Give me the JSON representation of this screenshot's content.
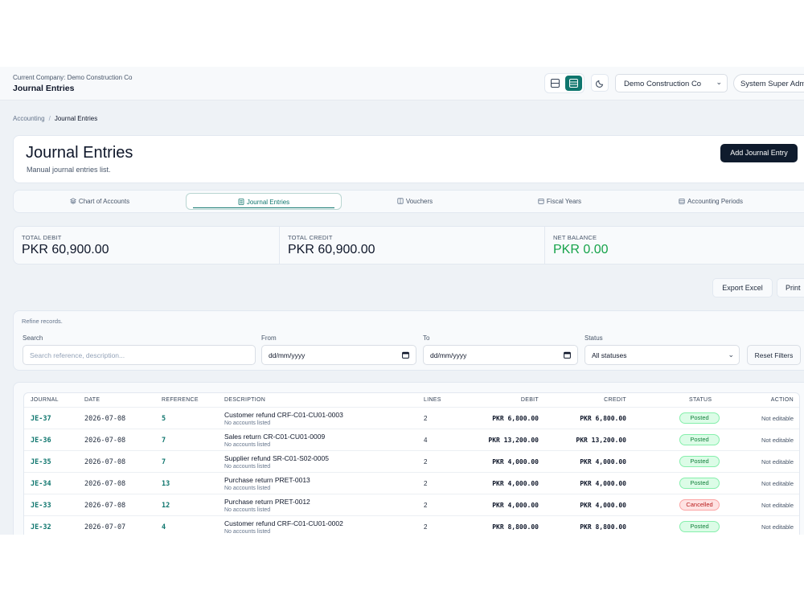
{
  "topbar": {
    "current_company": "Current Company: Demo Construction Co",
    "title": "Journal Entries",
    "company_select": "Demo Construction Co",
    "user": "System Super Admin"
  },
  "breadcrumb": {
    "parent": "Accounting",
    "current": "Journal Entries"
  },
  "header": {
    "title": "Journal Entries",
    "subtitle": "Manual journal entries list.",
    "add_button": "Add Journal Entry"
  },
  "tabs": [
    {
      "label": "Chart of Accounts",
      "icon": "layers-icon"
    },
    {
      "label": "Journal Entries",
      "icon": "document-icon",
      "active": true
    },
    {
      "label": "Vouchers",
      "icon": "voucher-icon"
    },
    {
      "label": "Fiscal Years",
      "icon": "calendar-icon"
    },
    {
      "label": "Accounting Periods",
      "icon": "calendar-grid-icon"
    }
  ],
  "summary": [
    {
      "label": "TOTAL DEBIT",
      "value": "PKR 60,900.00"
    },
    {
      "label": "TOTAL CREDIT",
      "value": "PKR 60,900.00"
    },
    {
      "label": "NET BALANCE",
      "value": "PKR 0.00"
    }
  ],
  "actions": {
    "export": "Export Excel",
    "print": "Print"
  },
  "filters": {
    "refine": "Refine records.",
    "search_label": "Search",
    "search_placeholder": "Search reference, description...",
    "from_label": "From",
    "from_value": "dd/mm/yyyy",
    "to_label": "To",
    "to_value": "dd/mm/yyyy",
    "status_label": "Status",
    "status_value": "All statuses",
    "reset": "Reset Filters"
  },
  "table": {
    "columns": [
      "JOURNAL",
      "DATE",
      "REFERENCE",
      "DESCRIPTION",
      "LINES",
      "DEBIT",
      "CREDIT",
      "STATUS",
      "ACTION"
    ],
    "rows": [
      {
        "journal": "JE-37",
        "date": "2026-07-08",
        "reference": "5",
        "description": "Customer refund CRF-C01-CU01-0003",
        "sub": "No accounts listed",
        "lines": "2",
        "debit": "PKR 6,800.00",
        "credit": "PKR 6,800.00",
        "status": "Posted",
        "action": "Not editable"
      },
      {
        "journal": "JE-36",
        "date": "2026-07-08",
        "reference": "7",
        "description": "Sales return CR-C01-CU01-0009",
        "sub": "No accounts listed",
        "lines": "4",
        "debit": "PKR 13,200.00",
        "credit": "PKR 13,200.00",
        "status": "Posted",
        "action": "Not editable"
      },
      {
        "journal": "JE-35",
        "date": "2026-07-08",
        "reference": "7",
        "description": "Supplier refund SR-C01-S02-0005",
        "sub": "No accounts listed",
        "lines": "2",
        "debit": "PKR 4,000.00",
        "credit": "PKR 4,000.00",
        "status": "Posted",
        "action": "Not editable"
      },
      {
        "journal": "JE-34",
        "date": "2026-07-08",
        "reference": "13",
        "description": "Purchase return PRET-0013",
        "sub": "No accounts listed",
        "lines": "2",
        "debit": "PKR 4,000.00",
        "credit": "PKR 4,000.00",
        "status": "Posted",
        "action": "Not editable"
      },
      {
        "journal": "JE-33",
        "date": "2026-07-08",
        "reference": "12",
        "description": "Purchase return PRET-0012",
        "sub": "No accounts listed",
        "lines": "2",
        "debit": "PKR 4,000.00",
        "credit": "PKR 4,000.00",
        "status": "Cancelled",
        "action": "Not editable"
      },
      {
        "journal": "JE-32",
        "date": "2026-07-07",
        "reference": "4",
        "description": "Customer refund CRF-C01-CU01-0002",
        "sub": "No accounts listed",
        "lines": "2",
        "debit": "PKR 8,800.00",
        "credit": "PKR 8,800.00",
        "status": "Posted",
        "action": "Not editable"
      }
    ]
  },
  "colors": {
    "accent": "#0f766e",
    "primary_button": "#0f1b2d",
    "positive": "#16a34a",
    "danger": "#b91c1c"
  }
}
